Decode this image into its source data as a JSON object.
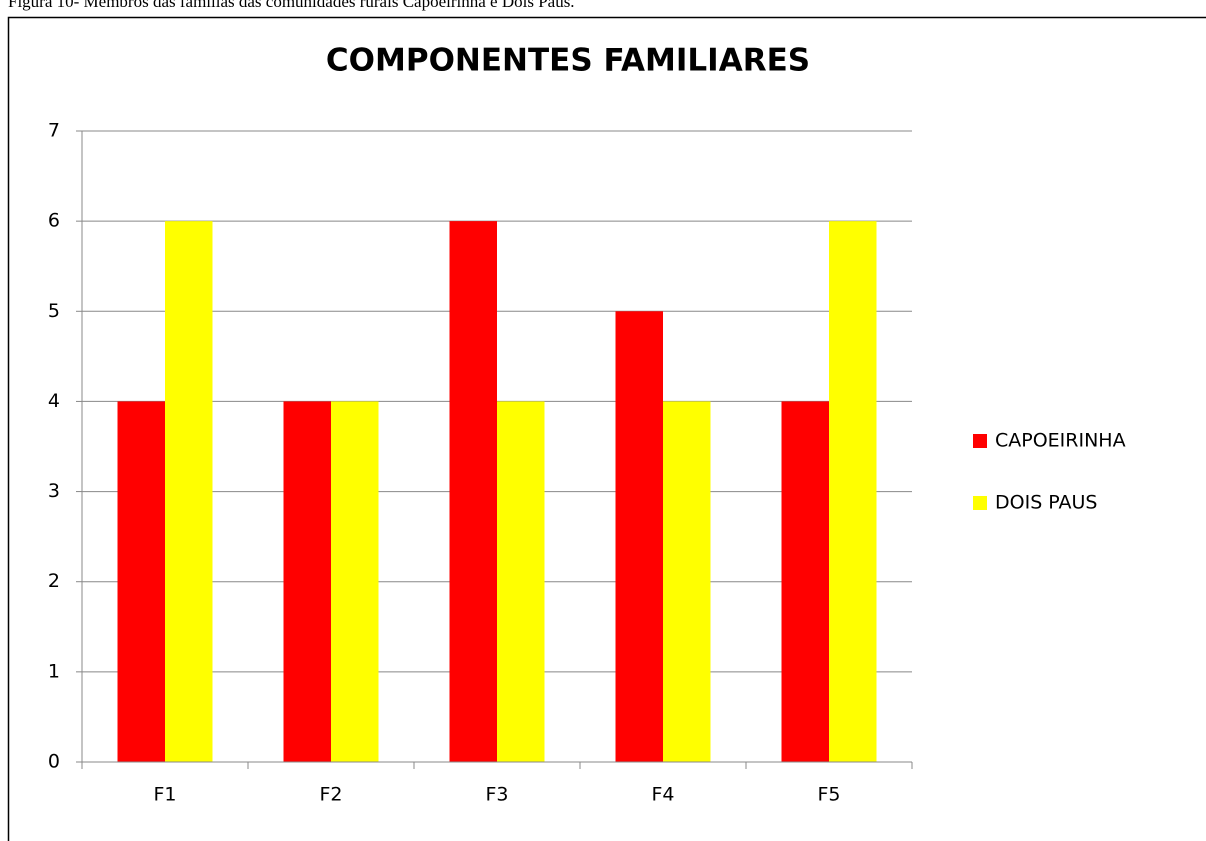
{
  "chart_data": {
    "type": "bar",
    "caption": "Figura 10- Membros das famílias das comunidades rurais Capoeirinha e Dois Paus.",
    "title": "COMPONENTES FAMILIARES",
    "categories": [
      "F1",
      "F2",
      "F3",
      "F4",
      "F5"
    ],
    "series": [
      {
        "name": "CAPOEIRINHA",
        "color": "#ff0000",
        "values": [
          4,
          4,
          6,
          5,
          4
        ]
      },
      {
        "name": "DOIS PAUS",
        "color": "#ffff00",
        "values": [
          6,
          4,
          4,
          4,
          6
        ]
      }
    ],
    "ylim": [
      0,
      7
    ],
    "yticks": [
      0,
      1,
      2,
      3,
      4,
      5,
      6,
      7
    ],
    "grid": true,
    "legend": "right"
  }
}
